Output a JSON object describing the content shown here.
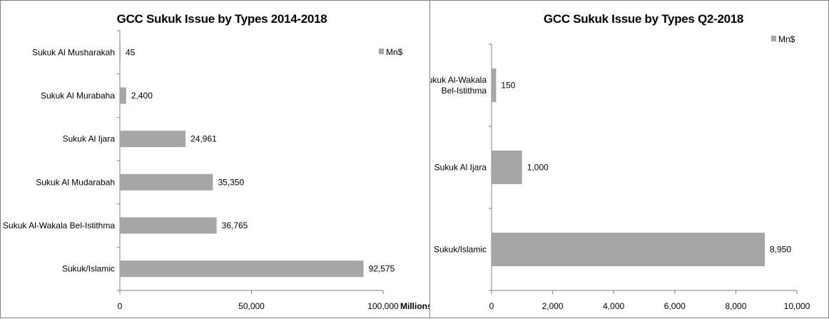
{
  "chart_data": [
    {
      "type": "bar",
      "orientation": "horizontal",
      "title": "GCC Sukuk Issue by Types 2014-2018",
      "xlabel": "Millions",
      "ylabel": "",
      "categories": [
        "Sukuk Al Musharakah",
        "Sukuk Al Murabaha",
        "Sukuk Al Ijara",
        "Sukuk Al Mudarabah",
        "Sukuk Al-Wakala Bel-Istithma",
        "Sukuk/Islamic"
      ],
      "series": [
        {
          "name": "Mn$",
          "values": [
            45,
            2400,
            24961,
            35350,
            36765,
            92575
          ]
        }
      ],
      "data_labels": [
        "45",
        "2,400",
        "24,961",
        "35,350",
        "36,765",
        "92,575"
      ],
      "xlim": [
        0,
        100000
      ],
      "xticks": [
        0,
        50000,
        100000
      ],
      "xtick_labels": [
        "0",
        "50,000",
        "100,000"
      ],
      "legend": "top-right",
      "grid": false,
      "bar_color": "#a6a6a6"
    },
    {
      "type": "bar",
      "orientation": "horizontal",
      "title": "GCC Sukuk Issue by Types Q2-2018",
      "xlabel": "",
      "ylabel": "",
      "categories": [
        [
          "Sukuk Al-Wakala",
          "Bel-Istithma"
        ],
        [
          "Sukuk Al Ijara"
        ],
        [
          "Sukuk/Islamic"
        ]
      ],
      "series": [
        {
          "name": "Mn$",
          "values": [
            150,
            1000,
            8950
          ]
        }
      ],
      "data_labels": [
        "150",
        "1,000",
        "8,950"
      ],
      "xlim": [
        0,
        10000
      ],
      "xticks": [
        0,
        2000,
        4000,
        6000,
        8000,
        10000
      ],
      "xtick_labels": [
        "0",
        "2,000",
        "4,000",
        "6,000",
        "8,000",
        "10,000"
      ],
      "legend": "top-right",
      "grid": false,
      "bar_color": "#a6a6a6"
    }
  ]
}
